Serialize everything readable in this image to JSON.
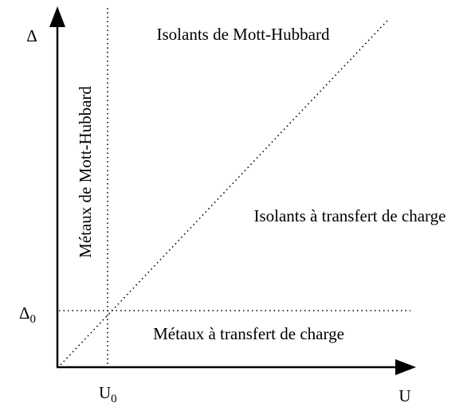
{
  "axes": {
    "y_label": "Δ",
    "x_label": "U",
    "x_marker": {
      "base": "U",
      "sub": "0"
    },
    "y_marker": {
      "base": "Δ",
      "sub": "0"
    }
  },
  "regions": {
    "top": "Isolants de Mott-Hubbard",
    "right": "Isolants à transfert de charge",
    "bottom": "Métaux à transfert de charge",
    "left": "Métaux de Mott-Hubbard"
  }
}
